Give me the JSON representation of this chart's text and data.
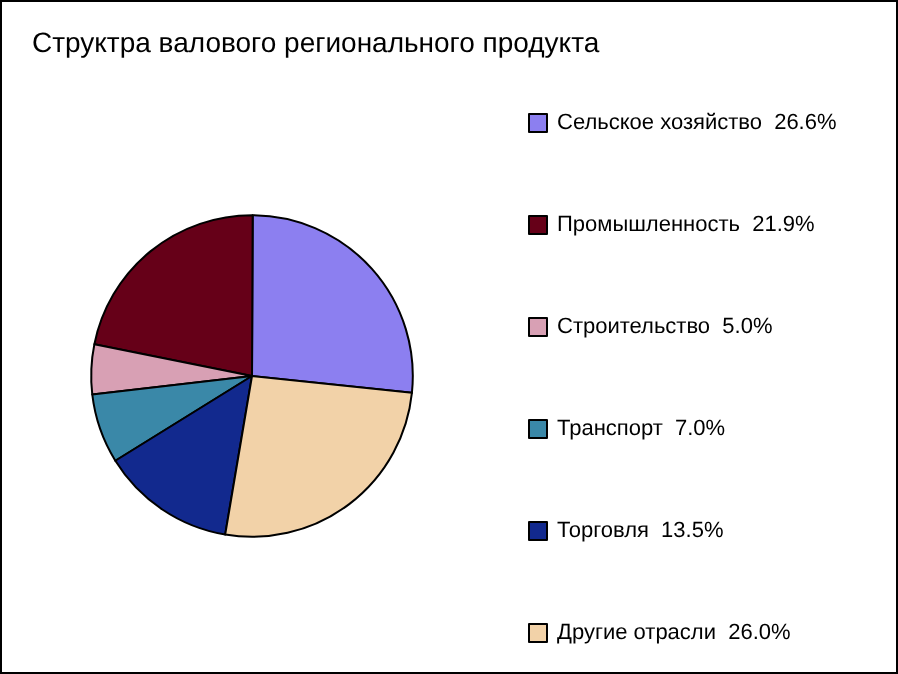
{
  "chart_data": {
    "type": "pie",
    "title": "Структра валового регионального продукта",
    "categories": [
      "Сельское хозяйство",
      "Промышленность",
      "Строительство",
      "Транспорт",
      "Торговля",
      "Другие отрасли"
    ],
    "values": [
      26.6,
      21.9,
      5.0,
      7.0,
      13.5,
      26.0
    ],
    "value_labels": [
      "26.6%",
      "21.9%",
      "5.0%",
      "7.0%",
      "13.5%",
      "26.0%"
    ],
    "colors": [
      "#8c7ff0",
      "#660018",
      "#d8a0b4",
      "#3a88a8",
      "#12298e",
      "#f2d2a8"
    ],
    "legend": "right"
  }
}
